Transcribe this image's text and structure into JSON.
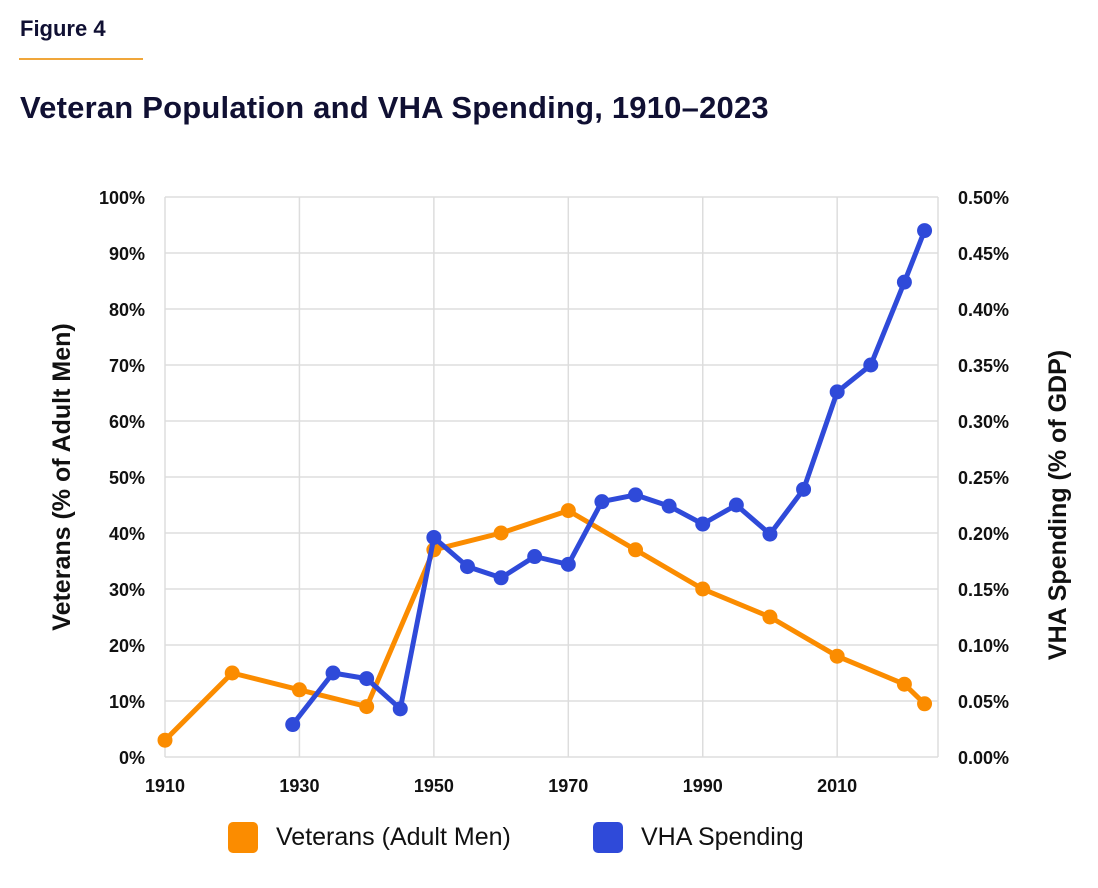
{
  "figure_label": "Figure 4",
  "title": "Veteran Population and VHA Spending, 1910–2023",
  "colors": {
    "veterans": "#fb8c00",
    "vha": "#2f4ad9",
    "grid": "#dddddd",
    "accent_rule": "#f0a63a"
  },
  "chart_data": {
    "type": "line",
    "title": "Veteran Population and VHA Spending, 1910–2023",
    "xlabel": "",
    "ylabel": "Veterans (% of Adult Men)",
    "y2label": "VHA Spending (% of GDP)",
    "xlim": [
      1910,
      2025
    ],
    "ylim": [
      0,
      100
    ],
    "y2lim": [
      0,
      0.5
    ],
    "x_ticks": [
      1910,
      1930,
      1950,
      1970,
      1990,
      2010
    ],
    "x_tick_labels": [
      "1910",
      "1930",
      "1950",
      "1970",
      "1990",
      "2010"
    ],
    "y_ticks": [
      0,
      10,
      20,
      30,
      40,
      50,
      60,
      70,
      80,
      90,
      100
    ],
    "y_tick_labels": [
      "0%",
      "10%",
      "20%",
      "30%",
      "40%",
      "50%",
      "60%",
      "70%",
      "80%",
      "90%",
      "100%"
    ],
    "y2_ticks": [
      0,
      0.05,
      0.1,
      0.15,
      0.2,
      0.25,
      0.3,
      0.35,
      0.4,
      0.45,
      0.5
    ],
    "y2_tick_labels": [
      "0.00%",
      "0.05%",
      "0.10%",
      "0.15%",
      "0.20%",
      "0.25%",
      "0.30%",
      "0.35%",
      "0.40%",
      "0.45%",
      "0.50%"
    ],
    "grid": true,
    "legend_position": "bottom-center",
    "series": [
      {
        "name": "Veterans (Adult Men)",
        "axis": "left",
        "color": "#fb8c00",
        "x": [
          1910,
          1920,
          1930,
          1940,
          1950,
          1960,
          1970,
          1980,
          1990,
          2000,
          2010,
          2020,
          2023
        ],
        "values": [
          3,
          15,
          12,
          9,
          37,
          40,
          44,
          37,
          30,
          25,
          18,
          13,
          9.5
        ]
      },
      {
        "name": "VHA Spending",
        "axis": "right",
        "color": "#2f4ad9",
        "x": [
          1929,
          1935,
          1940,
          1945,
          1950,
          1955,
          1960,
          1965,
          1970,
          1975,
          1980,
          1985,
          1990,
          1995,
          2000,
          2005,
          2010,
          2015,
          2020,
          2023
        ],
        "values": [
          0.029,
          0.075,
          0.07,
          0.043,
          0.196,
          0.17,
          0.16,
          0.179,
          0.172,
          0.228,
          0.234,
          0.224,
          0.208,
          0.225,
          0.199,
          0.239,
          0.326,
          0.35,
          0.424,
          0.47
        ]
      }
    ]
  }
}
